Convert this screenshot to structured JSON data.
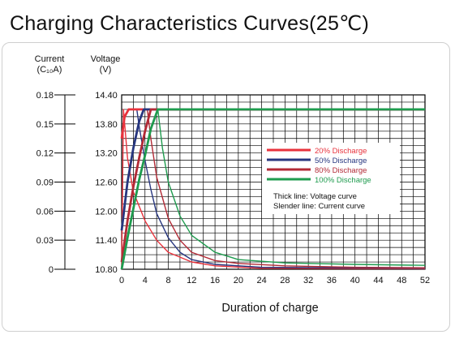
{
  "title": "Charging Characteristics Curves(25℃)",
  "chart_data": {
    "type": "line",
    "title": "Charging Characteristics Curves(25℃)",
    "xlabel": "Duration of charge",
    "x_ticks": [
      "0",
      "4",
      "8",
      "12",
      "16",
      "20",
      "24",
      "28",
      "32",
      "36",
      "40",
      "44",
      "48",
      "52"
    ],
    "xlim": [
      0,
      52
    ],
    "y_left_label": [
      "Current",
      "(C₁₀A)"
    ],
    "y_left_ticks": [
      "0",
      "0.03",
      "0.06",
      "0.09",
      "0.12",
      "0.15",
      "0.18"
    ],
    "y_left_lim": [
      0,
      0.18
    ],
    "y_right_label": [
      "Voltage",
      "(V)"
    ],
    "y_right_ticks": [
      "10.80",
      "11.40",
      "12.00",
      "12.60",
      "13.20",
      "13.80",
      "14.40"
    ],
    "y_right_lim": [
      10.8,
      14.4
    ],
    "grid": true,
    "legend_position": "center-right",
    "legend_notes": [
      "Thick line:  Voltage curve",
      "Slender line: Current curve"
    ],
    "series": [
      {
        "name": "20% Discharge",
        "color": "#e8323c",
        "voltage": [
          [
            0,
            13.5
          ],
          [
            0.5,
            13.95
          ],
          [
            1.2,
            14.1
          ],
          [
            2,
            14.1
          ],
          [
            52,
            14.1
          ]
        ],
        "current": [
          [
            0,
            10.8
          ],
          [
            0.3,
            14.1
          ],
          [
            1,
            13.1
          ],
          [
            2,
            12.4
          ],
          [
            4,
            11.8
          ],
          [
            6,
            11.4
          ],
          [
            8,
            11.15
          ],
          [
            12,
            10.95
          ],
          [
            16,
            10.87
          ],
          [
            24,
            10.82
          ],
          [
            52,
            10.81
          ]
        ]
      },
      {
        "name": "50% Discharge",
        "color": "#27367f",
        "voltage": [
          [
            0,
            11.6
          ],
          [
            1,
            12.6
          ],
          [
            2,
            13.3
          ],
          [
            3,
            13.85
          ],
          [
            3.8,
            14.1
          ],
          [
            52,
            14.1
          ]
        ],
        "current": [
          [
            2.6,
            14.1
          ],
          [
            3,
            13.75
          ],
          [
            4,
            13.05
          ],
          [
            5,
            12.45
          ],
          [
            6,
            11.95
          ],
          [
            8,
            11.45
          ],
          [
            10,
            11.15
          ],
          [
            12,
            11.0
          ],
          [
            16,
            10.9
          ],
          [
            24,
            10.84
          ],
          [
            52,
            10.82
          ]
        ]
      },
      {
        "name": "80% Discharge",
        "color": "#b22a36",
        "voltage": [
          [
            0,
            10.95
          ],
          [
            1,
            11.8
          ],
          [
            2,
            12.5
          ],
          [
            3,
            13.1
          ],
          [
            4,
            13.65
          ],
          [
            5,
            14.1
          ],
          [
            52,
            14.1
          ]
        ],
        "current": [
          [
            4.4,
            14.1
          ],
          [
            5,
            13.5
          ],
          [
            6,
            12.7
          ],
          [
            8,
            11.85
          ],
          [
            10,
            11.4
          ],
          [
            12,
            11.15
          ],
          [
            16,
            10.98
          ],
          [
            20,
            10.92
          ],
          [
            28,
            10.87
          ],
          [
            40,
            10.84
          ],
          [
            52,
            10.83
          ]
        ]
      },
      {
        "name": "100% Discharge",
        "color": "#1e9b4e",
        "voltage": [
          [
            0,
            10.8
          ],
          [
            1,
            11.45
          ],
          [
            2,
            12.05
          ],
          [
            3,
            12.65
          ],
          [
            4,
            13.15
          ],
          [
            5,
            13.7
          ],
          [
            6.2,
            14.1
          ],
          [
            52,
            14.1
          ]
        ],
        "current": [
          [
            6.2,
            14.1
          ],
          [
            7,
            13.3
          ],
          [
            8,
            12.6
          ],
          [
            10,
            11.9
          ],
          [
            12,
            11.5
          ],
          [
            16,
            11.15
          ],
          [
            20,
            11.0
          ],
          [
            28,
            10.93
          ],
          [
            40,
            10.9
          ],
          [
            52,
            10.88
          ]
        ]
      }
    ]
  }
}
